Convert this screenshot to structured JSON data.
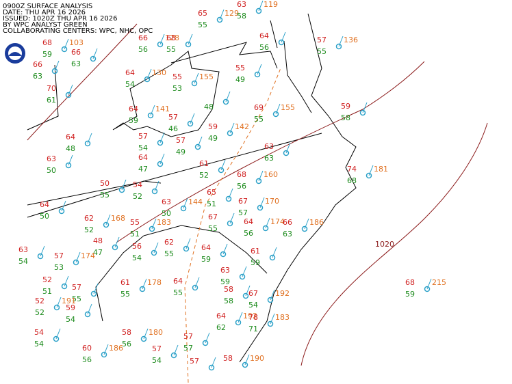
{
  "header": {
    "lines": [
      "0900Z SURFACE ANALYSIS",
      "DATE: THU APR 16 2026",
      "ISSUED: 1020Z THU APR 16 2026",
      "BY WPC ANALYST GREEN",
      "COLLABORATING CENTERS: WPC, NHC, OPC"
    ]
  },
  "isobar_label": "1020",
  "stations": [
    {
      "temp": 68,
      "dew": 59,
      "pressure": 103
    },
    {
      "temp": 66,
      "dew": 63
    },
    {
      "temp": 66,
      "dew": 63
    },
    {
      "temp": 70,
      "dew": 61
    },
    {
      "temp": 66,
      "dew": 56,
      "pressure": 128
    },
    {
      "temp": 68,
      "dew": 55
    },
    {
      "temp": 64,
      "dew": 54,
      "pressure": 130
    },
    {
      "temp": 55,
      "dew": 53,
      "pressure": 155
    },
    {
      "dew": 48
    },
    {
      "temp": 64,
      "dew": 59,
      "pressure": 141
    },
    {
      "temp": 57,
      "dew": 46
    },
    {
      "temp": 57,
      "dew": 54
    },
    {
      "temp": 57,
      "dew": 49
    },
    {
      "temp": 64,
      "dew": 47
    },
    {
      "temp": 59,
      "dew": 49,
      "pressure": 142
    },
    {
      "temp": 61,
      "dew": 52
    },
    {
      "temp": 65,
      "dew": 55,
      "pressure": 129
    },
    {
      "temp": 55,
      "dew": 49
    },
    {
      "temp": 69,
      "dew": 55,
      "pressure": 155
    },
    {
      "temp": 63,
      "dew": 58,
      "pressure": 119
    },
    {
      "temp": 64,
      "dew": 56
    },
    {
      "temp": 63,
      "dew": 63
    },
    {
      "temp": 68,
      "dew": 56,
      "pressure": 160
    },
    {
      "temp": 65,
      "dew": 51
    },
    {
      "temp": 63,
      "dew": 50,
      "pressure": 144
    },
    {
      "temp": 67,
      "dew": 55
    },
    {
      "temp": 67,
      "dew": 57,
      "pressure": 170
    },
    {
      "temp": 64,
      "dew": 56,
      "pressure": 174
    },
    {
      "temp": 66,
      "dew": 63,
      "pressure": 186
    },
    {
      "temp": 62,
      "dew": 52,
      "pressure": 168
    },
    {
      "temp": 48,
      "dew": 47
    },
    {
      "temp": 50,
      "dew": 55
    },
    {
      "temp": 54,
      "dew": 52
    },
    {
      "temp": 55,
      "dew": 51,
      "pressure": 183
    },
    {
      "temp": 56,
      "dew": 54
    },
    {
      "temp": 62,
      "dew": 55
    },
    {
      "temp": 64,
      "dew": 59
    },
    {
      "temp": 61,
      "dew": 59
    },
    {
      "temp": 63,
      "dew": 59
    },
    {
      "temp": 58,
      "dew": 58
    },
    {
      "temp": 67,
      "dew": 54,
      "pressure": 192
    },
    {
      "temp": 64,
      "dew": 62,
      "pressure": 192
    },
    {
      "temp": 78,
      "dew": 71,
      "pressure": 183
    },
    {
      "temp": 64,
      "dew": 55
    },
    {
      "temp": 61,
      "dew": 55,
      "pressure": 178
    },
    {
      "temp": 57,
      "dew": 55
    },
    {
      "temp": 52,
      "dew": 51
    },
    {
      "temp": 52,
      "dew": 52,
      "pressure": 191
    },
    {
      "temp": 59,
      "dew": 54
    },
    {
      "temp": 54,
      "dew": 54
    },
    {
      "temp": 58,
      "dew": 56,
      "pressure": 180
    },
    {
      "temp": 57,
      "dew": 54
    },
    {
      "temp": 57,
      "dew": 57
    },
    {
      "temp": 57
    },
    {
      "temp": 60,
      "dew": 56,
      "pressure": 186
    },
    {
      "temp": 58,
      "pressure": 190
    },
    {
      "temp": 57,
      "dew": 53,
      "pressure": 174
    },
    {
      "temp": 63,
      "dew": 54
    },
    {
      "temp": 64,
      "dew": 50
    },
    {
      "temp": 64,
      "dew": 48
    },
    {
      "temp": 63,
      "dew": 50
    },
    {
      "temp": 59,
      "dew": 58
    },
    {
      "temp": 68,
      "dew": 59,
      "pressure": 215
    },
    {
      "temp": 74,
      "dew": 68,
      "pressure": 181
    },
    {
      "temp": 57,
      "dew": 55,
      "pressure": 136
    }
  ]
}
